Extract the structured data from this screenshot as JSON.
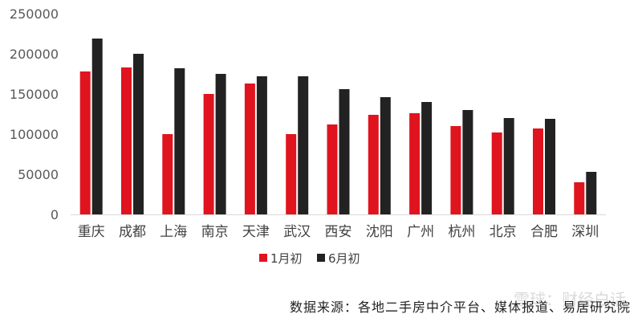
{
  "chart_data": {
    "type": "bar",
    "categories": [
      "重庆",
      "成都",
      "上海",
      "南京",
      "天津",
      "武汉",
      "西安",
      "沈阳",
      "广州",
      "杭州",
      "北京",
      "合肥",
      "深圳"
    ],
    "series": [
      {
        "name": "1月初",
        "color": "#e0141e",
        "values": [
          178000,
          183000,
          100000,
          150000,
          163000,
          100000,
          112000,
          124000,
          126000,
          110000,
          102000,
          107000,
          40000
        ]
      },
      {
        "name": "6月初",
        "color": "#222222",
        "values": [
          219000,
          200000,
          182000,
          175000,
          172000,
          172000,
          156000,
          146000,
          140000,
          130000,
          120000,
          119000,
          53000
        ]
      }
    ],
    "ylim": [
      0,
      250000
    ],
    "yticks": [
      0,
      50000,
      100000,
      150000,
      200000,
      250000
    ],
    "legend_position": "bottom",
    "grid": false
  },
  "source_note": "数据来源：各地二手房中介平台、媒体报道、易居研究院",
  "watermark": "雪球：财经白话"
}
